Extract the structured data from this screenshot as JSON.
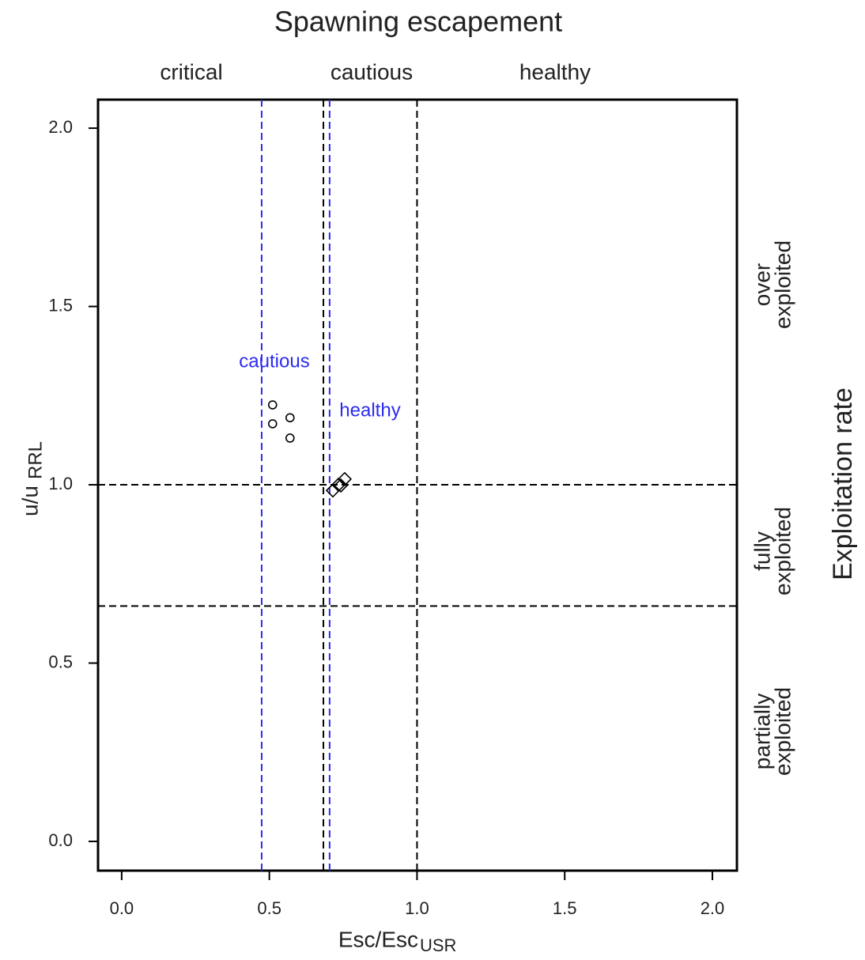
{
  "chart_data": {
    "type": "scatter",
    "title": "Spawning escapement",
    "xlabel": "Esc/Esc",
    "xlabel_sub": "USR",
    "ylabel": "u/u",
    "ylabel_sub": "RRL",
    "right_title": "Exploitation rate",
    "top_labels": [
      "critical",
      "cautious",
      "healthy"
    ],
    "right_labels": [
      [
        "over",
        "exploited"
      ],
      [
        "fully",
        "exploited"
      ],
      [
        "partially",
        "exploited"
      ]
    ],
    "annotations": [
      {
        "text": "cautious",
        "color": "#2b2bf0"
      },
      {
        "text": "healthy",
        "color": "#2b2bf0"
      }
    ],
    "xlim": [
      -0.08,
      2.083
    ],
    "ylim": [
      -0.082,
      2.08
    ],
    "xticks": [
      {
        "value": 0,
        "label": "0.0"
      },
      0.5,
      {
        "value": 1,
        "label": "1.0"
      },
      1.5,
      {
        "value": 2,
        "label": "2.0"
      }
    ],
    "yticks": [
      {
        "value": 0,
        "label": "0.0"
      },
      0.5,
      {
        "value": 1,
        "label": "1.0"
      },
      1.5,
      {
        "value": 2,
        "label": "2.0"
      }
    ],
    "vlines": [
      {
        "value": 0.474,
        "color": "#2b2bf0"
      },
      {
        "value": 0.704,
        "color": "#2b2bf0"
      },
      {
        "value": 0.683,
        "color": "#000000"
      },
      {
        "value": 1.0,
        "color": "#000000"
      }
    ],
    "hlines": [
      {
        "value": 1.0,
        "color": "#000000"
      },
      {
        "value": 0.66,
        "color": "#000000"
      }
    ],
    "series": [
      {
        "marker": "circle",
        "color": "#000000",
        "x": [
          0.511,
          0.511,
          0.57,
          0.57
        ],
        "y": [
          1.224,
          1.171,
          1.188,
          1.131
        ]
      },
      {
        "marker": "diamond",
        "color": "#000000",
        "x": [
          0.715,
          0.734,
          0.755,
          0.742
        ],
        "y": [
          0.984,
          1.0,
          1.016,
          0.998
        ]
      }
    ]
  }
}
